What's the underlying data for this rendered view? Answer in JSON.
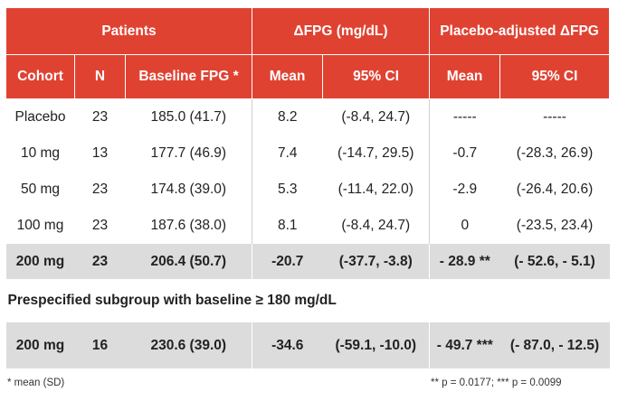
{
  "header": {
    "group_patients": "Patients",
    "group_dfpg": "ΔFPG (mg/dL)",
    "group_placebo_adj": "Placebo-adjusted ΔFPG",
    "col_cohort": "Cohort",
    "col_n": "N",
    "col_baseline": "Baseline FPG *",
    "col_mean": "Mean",
    "col_ci": "95% CI",
    "col_adj_mean": "Mean",
    "col_adj_ci": "95% CI"
  },
  "rows": [
    {
      "cohort": "Placebo",
      "n": "23",
      "baseline": "185.0 (41.7)",
      "mean": "8.2",
      "ci": "(-8.4, 24.7)",
      "adj_mean": "-----",
      "adj_ci": "-----"
    },
    {
      "cohort": "10 mg",
      "n": "13",
      "baseline": "177.7 (46.9)",
      "mean": "7.4",
      "ci": "(-14.7, 29.5)",
      "adj_mean": "-0.7",
      "adj_ci": "(-28.3, 26.9)"
    },
    {
      "cohort": "50 mg",
      "n": "23",
      "baseline": "174.8 (39.0)",
      "mean": "5.3",
      "ci": "(-11.4, 22.0)",
      "adj_mean": "-2.9",
      "adj_ci": "(-26.4, 20.6)"
    },
    {
      "cohort": "100 mg",
      "n": "23",
      "baseline": "187.6 (38.0)",
      "mean": "8.1",
      "ci": "(-8.4, 24.7)",
      "adj_mean": "0",
      "adj_ci": "(-23.5, 23.4)"
    },
    {
      "cohort": "200 mg",
      "n": "23",
      "baseline": "206.4 (50.7)",
      "mean": "-20.7",
      "ci": "(-37.7, -3.8)",
      "adj_mean": "- 28.9 **",
      "adj_ci": "(- 52.6, - 5.1)"
    }
  ],
  "subgroup": {
    "title": "Prespecified subgroup with baseline ≥ 180 mg/dL",
    "row": {
      "cohort": "200 mg",
      "n": "16",
      "baseline": "230.6 (39.0)",
      "mean": "-34.6",
      "ci": "(-59.1, -10.0)",
      "adj_mean": "- 49.7 ***",
      "adj_ci": "(- 87.0, - 12.5)"
    }
  },
  "footnotes": {
    "left": "* mean (SD)",
    "right": "** p = 0.0177; *** p = 0.0099"
  },
  "colors": {
    "header_bg": "#e04232",
    "header_text": "#ffffff",
    "highlight_bg": "#dcdcdc"
  }
}
